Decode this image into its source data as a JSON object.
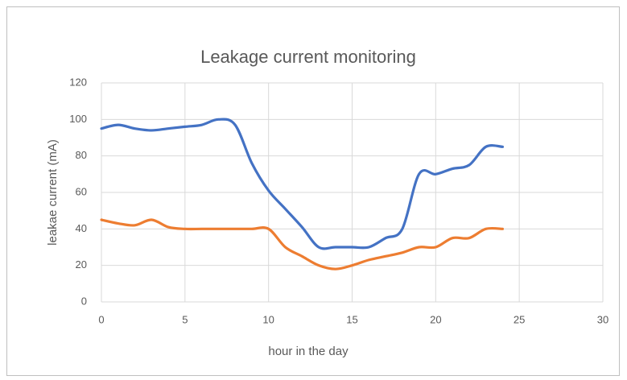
{
  "chart_data": {
    "type": "line",
    "title": "Leakage current monitoring",
    "x_label": "hour in the day",
    "y_label": "leakae current (mA)",
    "x": [
      0,
      1,
      2,
      3,
      4,
      5,
      6,
      7,
      8,
      9,
      10,
      11,
      12,
      13,
      14,
      15,
      16,
      17,
      18,
      19,
      20,
      21,
      22,
      23,
      24
    ],
    "series": [
      {
        "color": "#4472c4",
        "values": [
          95,
          97,
          95,
          94,
          95,
          96,
          97,
          100,
          97,
          76,
          61,
          51,
          41,
          30,
          30,
          30,
          30,
          35,
          40,
          70,
          70,
          73,
          75,
          85,
          85
        ]
      },
      {
        "color": "#ed7d31",
        "values": [
          45,
          43,
          42,
          45,
          41,
          40,
          40,
          40,
          40,
          40,
          40,
          30,
          25,
          20,
          18,
          20,
          23,
          25,
          27,
          30,
          30,
          35,
          35,
          40,
          40
        ]
      }
    ],
    "xlim": [
      0,
      30
    ],
    "xticks": [
      0,
      5,
      10,
      15,
      20,
      25,
      30
    ],
    "ylim": [
      0,
      120
    ],
    "yticks": [
      0,
      20,
      40,
      60,
      80,
      100,
      120
    ],
    "grid": true,
    "smooth": true
  }
}
